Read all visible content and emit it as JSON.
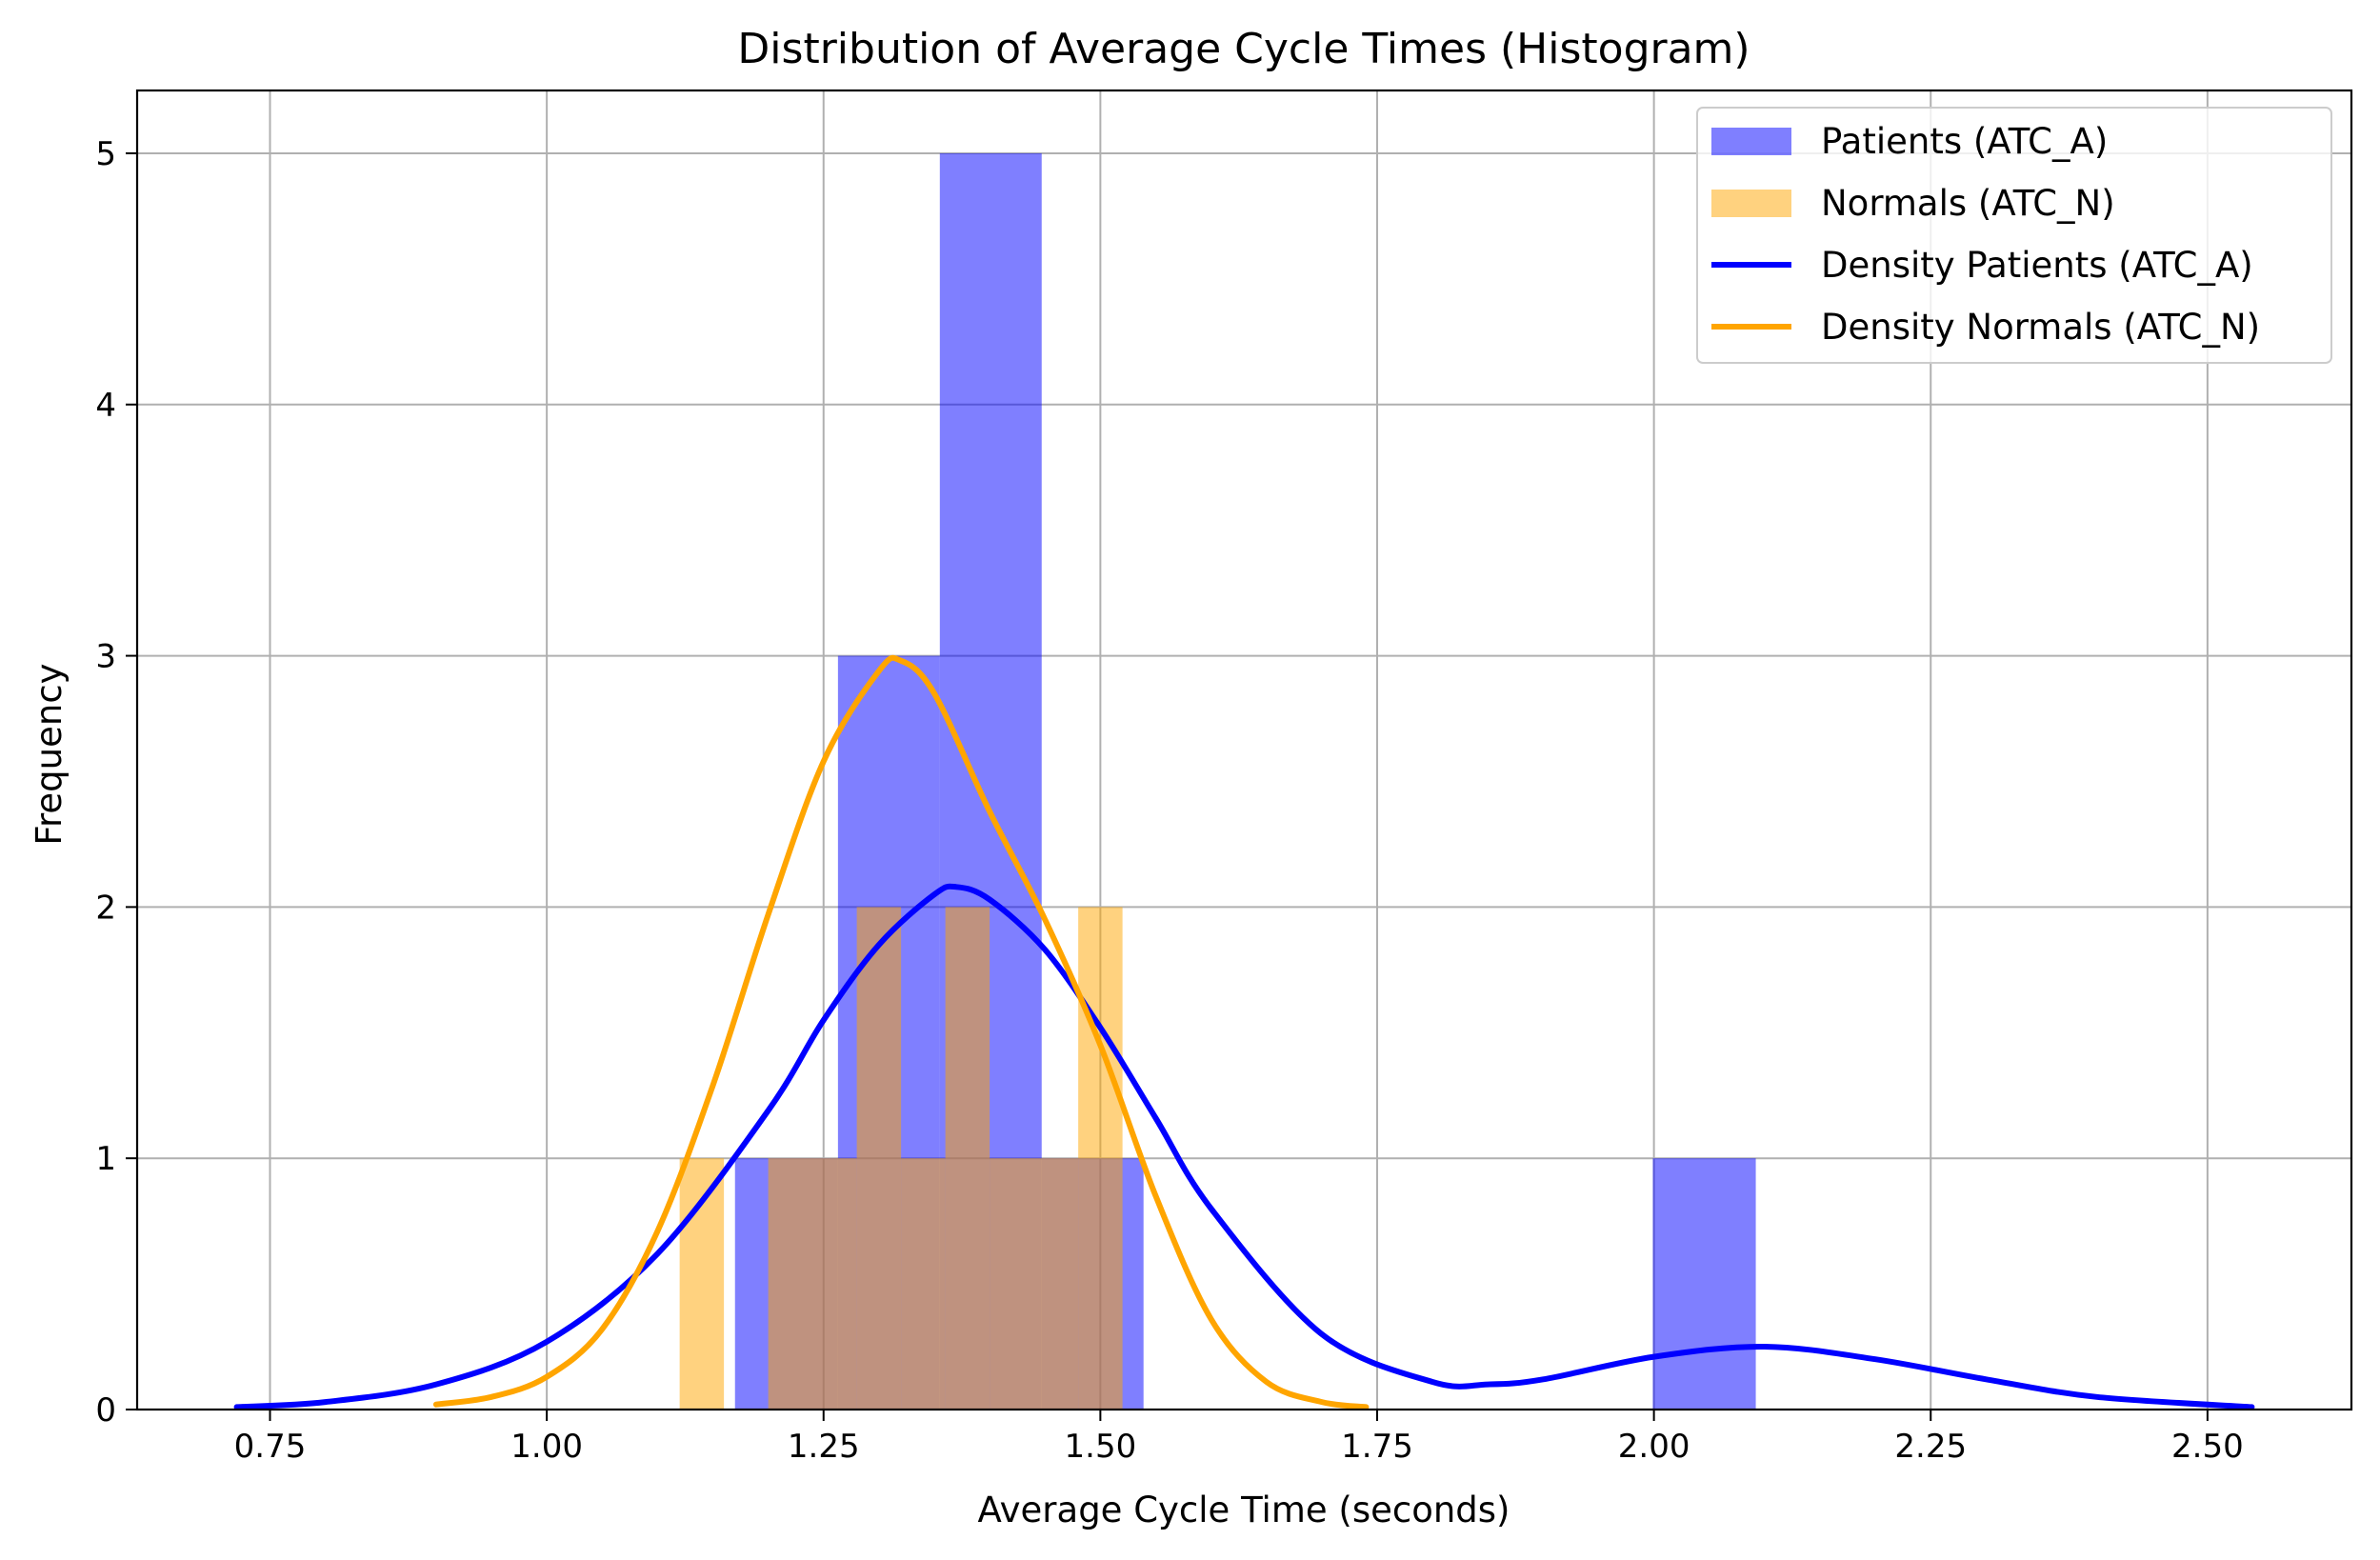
{
  "chart_data": {
    "type": "histogram",
    "title": "Distribution of Average Cycle Times (Histogram)",
    "xlabel": "Average Cycle Time (seconds)",
    "ylabel": "Frequency",
    "xlim": [
      0.63,
      2.63
    ],
    "ylim": [
      0,
      5.25
    ],
    "xticks": [
      "0.75",
      "1.00",
      "1.25",
      "1.50",
      "1.75",
      "2.00",
      "2.25",
      "2.50"
    ],
    "yticks": [
      "0",
      "1",
      "2",
      "3",
      "4",
      "5"
    ],
    "grid": true,
    "legend_position": "top-right",
    "histograms": [
      {
        "name": "Patients (ATC_A)",
        "color": "#0000ff",
        "alpha": 0.5,
        "bins": [
          {
            "x0": 1.17,
            "x1": 1.263,
            "count": 1
          },
          {
            "x0": 1.263,
            "x1": 1.355,
            "count": 3
          },
          {
            "x0": 1.355,
            "x1": 1.447,
            "count": 5
          },
          {
            "x0": 1.447,
            "x1": 1.539,
            "count": 1
          },
          {
            "x0": 1.999,
            "x1": 2.092,
            "count": 1
          }
        ]
      },
      {
        "name": "Normals (ATC_N)",
        "color": "#ffa500",
        "alpha": 0.5,
        "bins": [
          {
            "x0": 1.12,
            "x1": 1.16,
            "count": 1
          },
          {
            "x0": 1.2,
            "x1": 1.28,
            "count": 1
          },
          {
            "x0": 1.28,
            "x1": 1.32,
            "count": 2
          },
          {
            "x0": 1.32,
            "x1": 1.36,
            "count": 1
          },
          {
            "x0": 1.36,
            "x1": 1.4,
            "count": 2
          },
          {
            "x0": 1.4,
            "x1": 1.48,
            "count": 1
          },
          {
            "x0": 1.48,
            "x1": 1.52,
            "count": 2
          }
        ]
      }
    ],
    "series": [
      {
        "name": "Density Patients (ATC_A)",
        "color": "#0000ff",
        "x": [
          0.72,
          0.8,
          0.9,
          1.0,
          1.1,
          1.2,
          1.25,
          1.3,
          1.35,
          1.37,
          1.4,
          1.45,
          1.5,
          1.55,
          1.6,
          1.7,
          1.8,
          1.85,
          1.9,
          2.0,
          2.1,
          2.2,
          2.3,
          2.4,
          2.54
        ],
        "y": [
          0.01,
          0.03,
          0.1,
          0.27,
          0.62,
          1.19,
          1.55,
          1.85,
          2.05,
          2.08,
          2.03,
          1.83,
          1.52,
          1.16,
          0.8,
          0.3,
          0.11,
          0.1,
          0.12,
          0.21,
          0.25,
          0.2,
          0.12,
          0.05,
          0.01
        ]
      },
      {
        "name": "Density Normals (ATC_N)",
        "color": "#ffa500",
        "x": [
          0.9,
          0.95,
          1.0,
          1.05,
          1.1,
          1.15,
          1.2,
          1.25,
          1.3,
          1.32,
          1.35,
          1.4,
          1.45,
          1.5,
          1.55,
          1.6,
          1.65,
          1.7,
          1.74
        ],
        "y": [
          0.02,
          0.05,
          0.13,
          0.32,
          0.71,
          1.29,
          1.97,
          2.58,
          2.94,
          2.98,
          2.85,
          2.38,
          1.95,
          1.45,
          0.85,
          0.36,
          0.11,
          0.03,
          0.01
        ]
      }
    ]
  }
}
